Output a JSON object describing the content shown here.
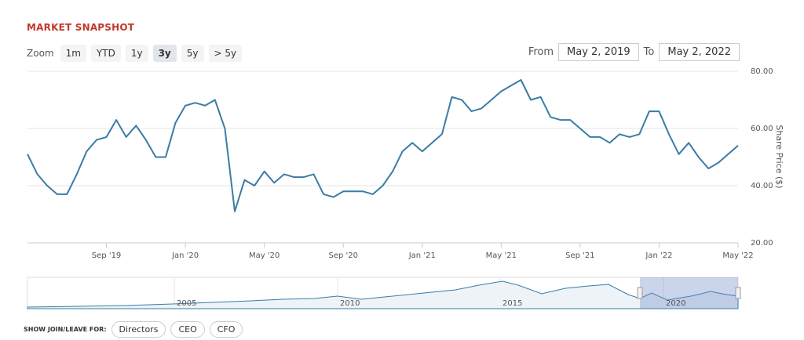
{
  "header": {
    "title": "MARKET SNAPSHOT"
  },
  "zoom": {
    "label": "Zoom",
    "buttons": [
      "1m",
      "YTD",
      "1y",
      "3y",
      "5y",
      "> 5y"
    ],
    "active": 3
  },
  "range": {
    "from_label": "From",
    "from": "May 2, 2019",
    "to_label": "To",
    "to": "May 2, 2022"
  },
  "chart_data": {
    "type": "line",
    "y_label": "Share Price ($)",
    "color": "#3a7ca5",
    "grid": true,
    "categories": [
      null,
      null,
      null,
      null,
      null,
      null,
      null,
      null,
      "Sep '19",
      null,
      null,
      null,
      null,
      null,
      null,
      null,
      "Jan '20",
      null,
      null,
      null,
      null,
      null,
      null,
      null,
      "May '20",
      null,
      null,
      null,
      null,
      null,
      null,
      null,
      "Sep '20",
      null,
      null,
      null,
      null,
      null,
      null,
      null,
      "Jan '21",
      null,
      null,
      null,
      null,
      null,
      null,
      null,
      "May '21",
      null,
      null,
      null,
      null,
      null,
      null,
      null,
      "Sep '21",
      null,
      null,
      null,
      null,
      null,
      null,
      null,
      "Jan '22",
      null,
      null,
      null,
      null,
      null,
      null,
      null,
      "May '22"
    ],
    "values": [
      51,
      44,
      40,
      37,
      37,
      44,
      52,
      56,
      57,
      63,
      57,
      61,
      56,
      50,
      50,
      62,
      68,
      69,
      68,
      70,
      60,
      31,
      42,
      40,
      45,
      41,
      44,
      43,
      43,
      44,
      37,
      36,
      38,
      38,
      38,
      37,
      40,
      45,
      52,
      55,
      52,
      55,
      58,
      71,
      70,
      66,
      67,
      70,
      73,
      75,
      77,
      70,
      71,
      64,
      63,
      63,
      60,
      57,
      57,
      55,
      58,
      57,
      58,
      66,
      66,
      58,
      51,
      55,
      50,
      46,
      48,
      51,
      54
    ],
    "ylim": [
      20,
      80
    ],
    "yticks": [
      {
        "value": 20,
        "label": "20.00"
      },
      {
        "value": 40,
        "label": "40.00"
      },
      {
        "value": 60,
        "label": "60.00"
      },
      {
        "value": 80,
        "label": "80.00"
      }
    ]
  },
  "navigator": {
    "labels": [
      "2005",
      "2010",
      "2015",
      "2020"
    ]
  },
  "footer": {
    "label": "SHOW JOIN/LEAVE FOR:",
    "buttons": [
      "Directors",
      "CEO",
      "CFO"
    ]
  }
}
